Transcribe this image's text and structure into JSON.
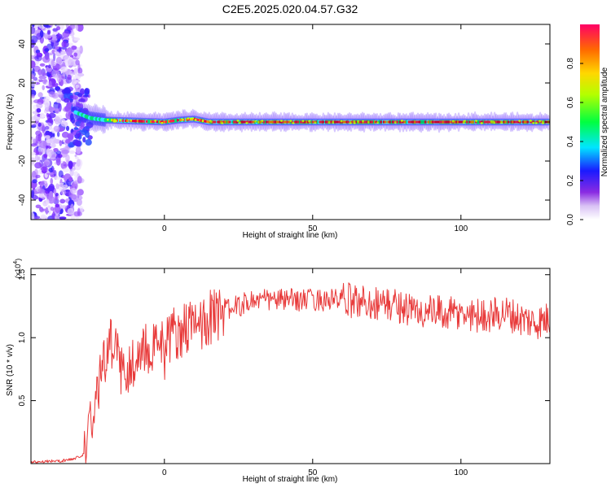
{
  "title": "C2E5.2025.020.04.57.G32",
  "colors": {
    "signal": "#e83a3a",
    "background": "#ffffff",
    "frame": "#000000"
  },
  "chart_data": [
    {
      "type": "heatmap",
      "xlabel": "Height of straight line (km)",
      "ylabel": "Frequency (Hz)",
      "xlim": [
        -45,
        130
      ],
      "ylim": [
        -50,
        50
      ],
      "x_ticks": [
        "0",
        "50",
        "100"
      ],
      "y_ticks": [
        "40",
        "20",
        "0",
        "-20",
        "-40"
      ],
      "grid": false,
      "colorbar": {
        "label": "Normalized spectral amplitude",
        "range": [
          0,
          1
        ],
        "ticks": [
          "0.0",
          "0.2",
          "0.4",
          "0.6",
          "0.8"
        ],
        "colormap": "rainbow (white-violet-blue-cyan-green-yellow-red)"
      },
      "ridge": [
        {
          "x": -30,
          "freq": 5
        },
        {
          "x": -25,
          "freq": 2
        },
        {
          "x": -20,
          "freq": 1
        },
        {
          "x": 0,
          "freq": 0
        },
        {
          "x": 5,
          "freq": 1
        },
        {
          "x": 10,
          "freq": 1.5
        },
        {
          "x": 15,
          "freq": 0
        },
        {
          "x": 50,
          "freq": 0
        },
        {
          "x": 100,
          "freq": 0
        },
        {
          "x": 130,
          "freq": 0
        }
      ]
    },
    {
      "type": "line",
      "xlabel": "Height of straight line (km)",
      "ylabel": "SNR (10 * v/v)",
      "y_multiplier": "(x10",
      "y_multiplier_exp": "4",
      "y_multiplier_close": ")",
      "xlim": [
        -45,
        130
      ],
      "ylim": [
        0,
        1.55
      ],
      "x_ticks": [
        "0",
        "50",
        "100"
      ],
      "y_ticks": [
        "0.5",
        "1.0",
        "1.5"
      ],
      "grid": false,
      "series": [
        {
          "color": "#e83a3a",
          "x": [
            -45,
            -40,
            -35,
            -30,
            -27,
            -25,
            -22,
            -20,
            -17,
            -15,
            -10,
            -5,
            0,
            5,
            8,
            10,
            15,
            20,
            25,
            30,
            40,
            50,
            60,
            70,
            80,
            85,
            90,
            100,
            110,
            115,
            120,
            125,
            130
          ],
          "y": [
            0.01,
            0.02,
            0.02,
            0.04,
            0.08,
            0.35,
            0.65,
            0.85,
            1.0,
            0.75,
            0.8,
            0.95,
            1.0,
            1.05,
            1.1,
            1.05,
            1.15,
            1.22,
            1.25,
            1.3,
            1.3,
            1.3,
            1.3,
            1.28,
            1.25,
            1.2,
            1.2,
            1.18,
            1.18,
            1.2,
            1.15,
            1.12,
            1.15
          ]
        }
      ]
    }
  ]
}
